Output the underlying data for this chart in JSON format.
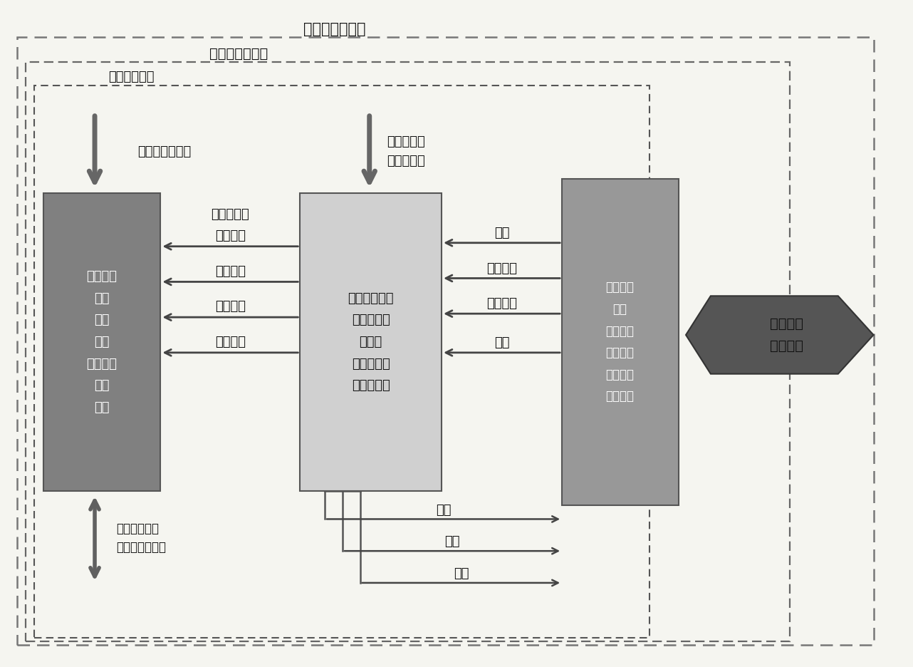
{
  "fig_width": 12.82,
  "fig_height": 9.36,
  "bg_color": "#f5f5f0",
  "box1_text": "能源需求\n供热\n制冷\n新风\n生活热水\n照明\n设备",
  "box2_text": "建筑能源系统\n能量的使用\n与生产\n系统的转换\n效率与损失",
  "box3_text": "能源的碳\n排放\n不同能源\n的形式和\n品位的碳\n排放强度",
  "box4_text": "建筑物的\n碳排放量",
  "label_outer": "建筑碳排放边界",
  "label_mid": "建筑净能量边界",
  "label_inner": "建筑能量边界",
  "arrow_down1_label": "太阳和内部得热",
  "arrow_down2_label": "可再生能源\n提供的能量",
  "labels_left_arrows": [
    "净能源需求",
    "供热负荷",
    "供冷负荷",
    "照明耗电",
    "设备耗电"
  ],
  "labels_right_arrows": [
    "电力",
    "区域供热",
    "区域供冷",
    "燃料"
  ],
  "label_bottom_exchange": "通过建筑围护\n结构的能量交换",
  "labels_bottom_out": [
    "电力",
    "热量",
    "冷量"
  ],
  "box1_color": "#808080",
  "box2_color": "#d0d0d0",
  "box3_color": "#989898",
  "arrow_dark": "#444444",
  "text_white": "#ffffff",
  "text_black": "#111111"
}
